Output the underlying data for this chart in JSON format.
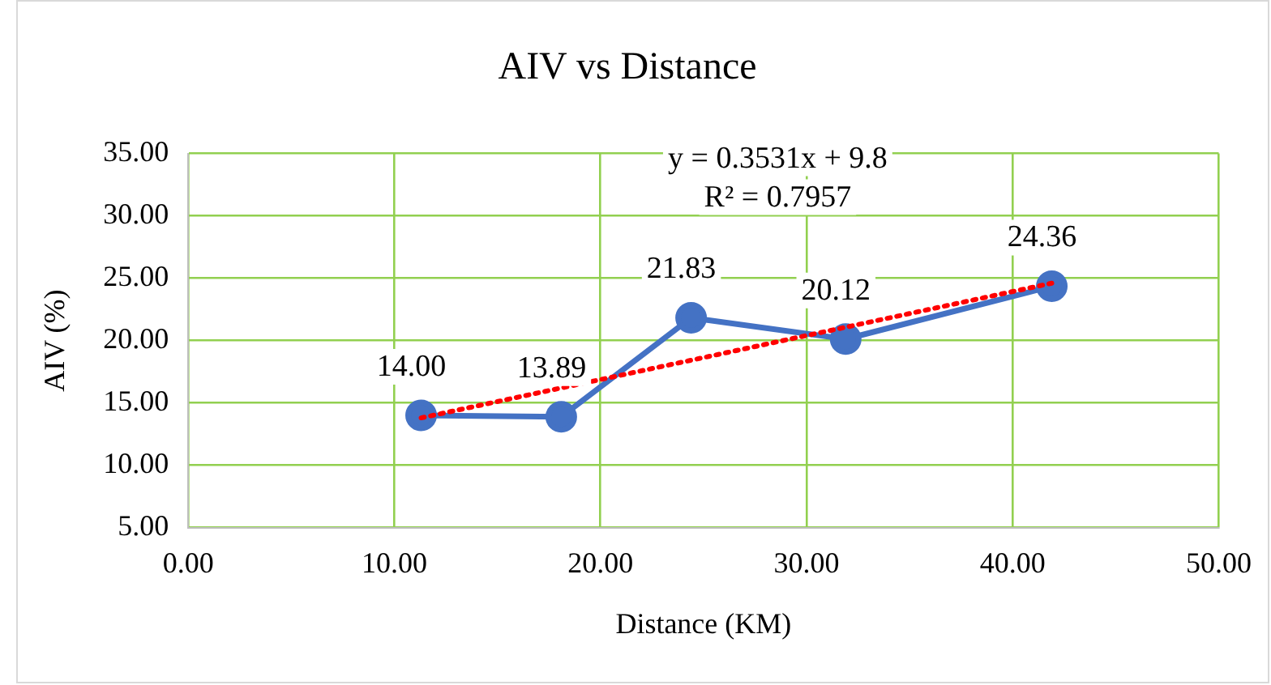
{
  "chart_data": {
    "type": "line",
    "title": "AIV vs Distance",
    "xlabel": "Distance (KM)",
    "ylabel": "AIV (%)",
    "xlim": [
      0,
      50
    ],
    "xticks": [
      {
        "value": 0,
        "label": "0.00"
      },
      {
        "value": 10,
        "label": "10.00"
      },
      {
        "value": 20,
        "label": "20.00"
      },
      {
        "value": 30,
        "label": "30.00"
      },
      {
        "value": 40,
        "label": "40.00"
      },
      {
        "value": 50,
        "label": "50.00"
      }
    ],
    "ylim": [
      5,
      35
    ],
    "yticks": [
      {
        "value": 5,
        "label": "5.00"
      },
      {
        "value": 10,
        "label": "10.00"
      },
      {
        "value": 15,
        "label": "15.00"
      },
      {
        "value": 20,
        "label": "20.00"
      },
      {
        "value": 25,
        "label": "25.00"
      },
      {
        "value": 30,
        "label": "30.00"
      },
      {
        "value": 35,
        "label": "35.00"
      }
    ],
    "grid": true,
    "marker": "circle",
    "line_style": "solid",
    "series": [
      {
        "color": "#4472c4",
        "x": [
          11.3,
          18.1,
          24.4,
          31.9,
          41.9
        ],
        "values": [
          14.0,
          13.89,
          21.83,
          20.12,
          24.36
        ],
        "value_labels": [
          "14.00",
          "13.89",
          "21.83",
          "20.12",
          "24.36"
        ]
      },
      {
        "type": "line",
        "color": "#ff0000",
        "x": [
          11.3,
          41.9
        ],
        "values": [
          13.8,
          24.6
        ],
        "line_style": "dotted",
        "marker": "none"
      }
    ],
    "annotations": [
      "y = 0.3531x + 9.8",
      "R² = 0.7957"
    ]
  }
}
